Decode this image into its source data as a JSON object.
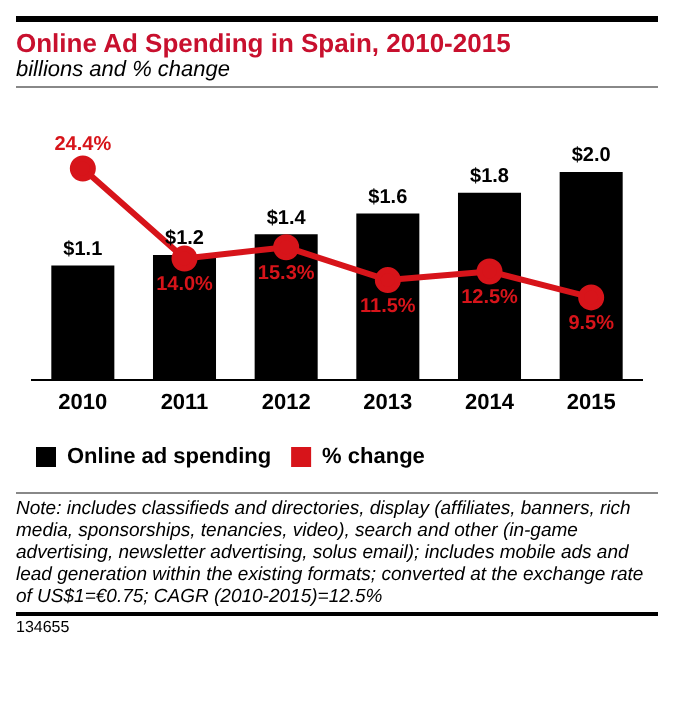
{
  "chart_data": {
    "type": "bar",
    "title": "Online Ad Spending in Spain, 2010-2015",
    "subtitle": "billions and % change",
    "categories": [
      "2010",
      "2011",
      "2012",
      "2013",
      "2014",
      "2015"
    ],
    "series": [
      {
        "name": "Online ad spending",
        "color": "#000000",
        "values": [
          1.1,
          1.2,
          1.4,
          1.6,
          1.8,
          2.0
        ],
        "value_labels": [
          "$1.1",
          "$1.2",
          "$1.4",
          "$1.6",
          "$1.8",
          "$2.0"
        ]
      },
      {
        "name": "% change",
        "type": "line",
        "axis": "y2",
        "color": "#d7141a",
        "values": [
          24.4,
          14.0,
          15.3,
          11.5,
          12.5,
          9.5
        ],
        "value_labels": [
          "24.4%",
          "14.0%",
          "15.3%",
          "11.5%",
          "12.5%",
          "9.5%"
        ]
      }
    ],
    "legend": "bottom",
    "grid": false,
    "marker": "circle",
    "tick_labels": "x",
    "annotations": [
      "Note: includes classifieds and directories, display (affiliates, banners, rich media, sponsorships, tenancies, video), search and other (in-game advertising, newsletter advertising, solus email); includes mobile ads and lead generation within the existing formats; converted at the exchange rate of US$1=€0.75; CAGR (2010-2015)=12.5%",
      "134655"
    ]
  }
}
